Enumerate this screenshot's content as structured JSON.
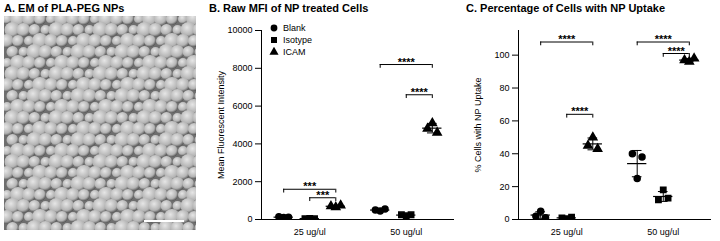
{
  "image_panel": {
    "title": "A. EM of PLA-PEG NPs"
  },
  "chart_data": [
    {
      "type": "scatter",
      "title": "B. Raw MFI of NP treated Cells",
      "y_label": "Mean Fluorescent Intensity",
      "categories": [
        "25 ug/ul",
        "50 ug/ul"
      ],
      "ylim": [
        0,
        10000
      ],
      "yticks": [
        0,
        2000,
        4000,
        6000,
        8000,
        10000
      ],
      "legend": "top-left",
      "series": [
        {
          "name": "Blank",
          "marker": "circle",
          "color": "#000000",
          "values": [
            [
              150,
              100,
              120
            ],
            [
              500,
              450,
              550
            ]
          ],
          "mean": [
            123,
            500
          ],
          "sd": [
            25,
            50
          ]
        },
        {
          "name": "Isotype",
          "marker": "square",
          "color": "#000000",
          "values": [
            [
              50,
              60,
              40
            ],
            [
              250,
              200,
              250
            ]
          ],
          "mean": [
            50,
            233
          ],
          "sd": [
            10,
            29
          ]
        },
        {
          "name": "ICAM",
          "marker": "triangle",
          "color": "#000000",
          "values": [
            [
              700,
              650,
              750
            ],
            [
              4800,
              5100,
              4600
            ]
          ],
          "mean": [
            700,
            4833
          ],
          "sd": [
            50,
            252
          ]
        }
      ],
      "annotations": [
        {
          "category": "25 ug/ul",
          "from": "Blank",
          "to": "ICAM",
          "y": 1600,
          "label": "***"
        },
        {
          "category": "25 ug/ul",
          "from": "Isotype",
          "to": "ICAM",
          "y": 1150,
          "label": "***"
        },
        {
          "category": "50 ug/ul",
          "from": "Blank",
          "to": "ICAM",
          "y": 8200,
          "label": "****"
        },
        {
          "category": "50 ug/ul",
          "from": "Isotype",
          "to": "ICAM",
          "y": 6600,
          "label": "****"
        }
      ]
    },
    {
      "type": "scatter",
      "title": "C. Percentage of Cells with NP Uptake",
      "y_label": "% Cells with NP Uptake",
      "categories": [
        "25 ug/ul",
        "50 ug/ul"
      ],
      "ylim": [
        0,
        115
      ],
      "yticks": [
        0,
        20,
        40,
        60,
        80,
        100
      ],
      "series": [
        {
          "name": "Blank",
          "marker": "circle",
          "color": "#000000",
          "values": [
            [
              2,
              5,
              1
            ],
            [
              40,
              25,
              38
            ]
          ],
          "mean": [
            2.7,
            34
          ],
          "sd": [
            2,
            8
          ]
        },
        {
          "name": "Isotype",
          "marker": "square",
          "color": "#000000",
          "values": [
            [
              1,
              0.5,
              1.5
            ],
            [
              12,
              18,
              13
            ]
          ],
          "mean": [
            1,
            14
          ],
          "sd": [
            0.5,
            3
          ]
        },
        {
          "name": "ICAM",
          "marker": "triangle",
          "color": "#000000",
          "values": [
            [
              45,
              50,
              43
            ],
            [
              97,
              96,
              98
            ]
          ],
          "mean": [
            46,
            97
          ],
          "sd": [
            3.6,
            1
          ]
        }
      ],
      "annotations": [
        {
          "category": "25 ug/ul",
          "from": "Blank",
          "to": "ICAM",
          "y": 108,
          "label": "****"
        },
        {
          "category": "25 ug/ul",
          "from": "Isotype",
          "to": "ICAM",
          "y": 64,
          "label": "****"
        },
        {
          "category": "50 ug/ul",
          "from": "Blank",
          "to": "ICAM",
          "y": 108,
          "label": "****"
        },
        {
          "category": "50 ug/ul",
          "from": "Isotype",
          "to": "ICAM",
          "y": 101,
          "label": "****"
        }
      ]
    }
  ]
}
